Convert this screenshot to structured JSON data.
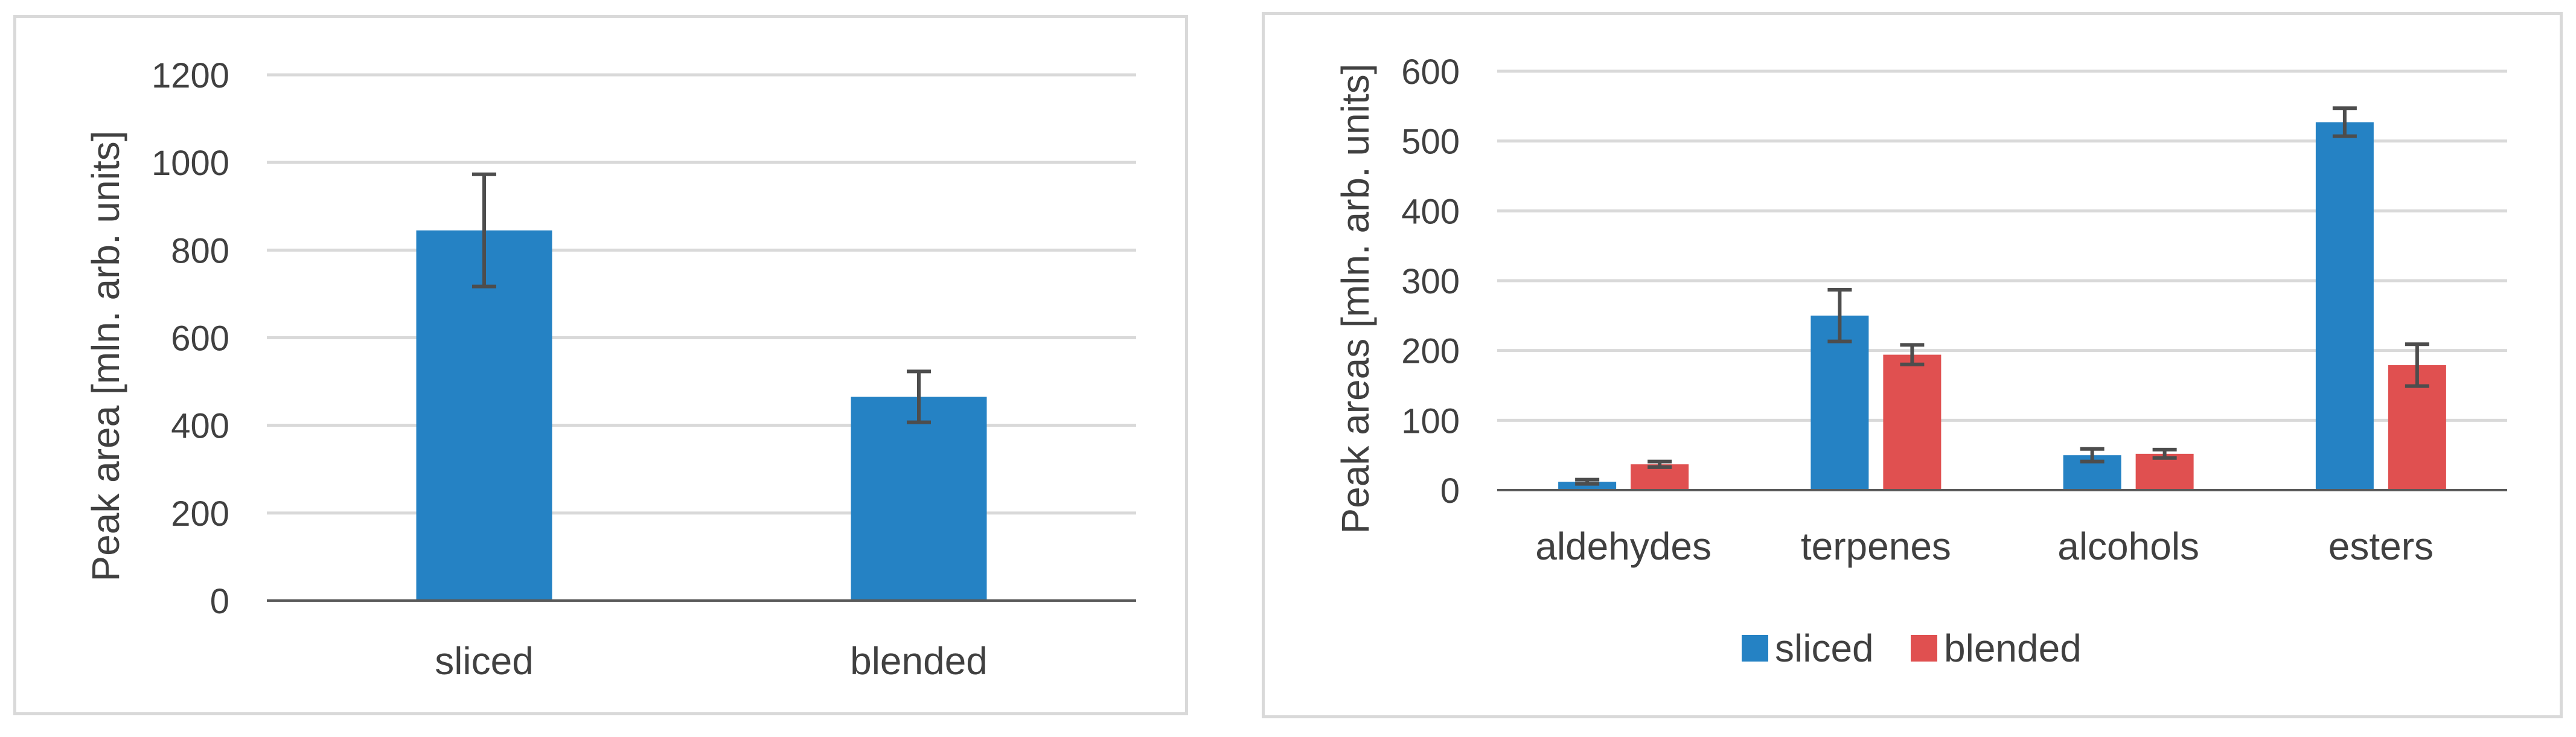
{
  "colors": {
    "sliced": "#2582c4",
    "blended": "#e05050",
    "grid": "#d9d9d9",
    "axis": "#595959",
    "text": "#404040",
    "errorbar": "#4d4d4d"
  },
  "chart_data": [
    {
      "type": "bar",
      "categories": [
        "sliced",
        "blended"
      ],
      "series": [
        {
          "values": [
            845,
            465
          ],
          "errors": [
            128,
            58
          ],
          "color": "#2582c4"
        }
      ],
      "title": "",
      "xlabel": "",
      "ylabel": "Peak area [mln. arb. units]",
      "ylim": [
        0,
        1200
      ],
      "yticks": [
        0,
        200,
        400,
        600,
        800,
        1000,
        1200
      ],
      "grid": true,
      "legend": "none"
    },
    {
      "type": "bar",
      "categories": [
        "aldehydes",
        "terpenes",
        "alcohols",
        "esters"
      ],
      "series": [
        {
          "name": "sliced",
          "values": [
            12,
            250,
            50,
            527
          ],
          "errors": [
            3,
            37,
            9,
            20
          ],
          "color": "#2582c4"
        },
        {
          "name": "blended",
          "values": [
            37,
            194,
            52,
            179
          ],
          "errors": [
            4,
            14,
            6,
            30
          ],
          "color": "#e05050"
        }
      ],
      "title": "",
      "xlabel": "",
      "ylabel": "Peak areas [mln. arb. units]",
      "ylim": [
        0,
        600
      ],
      "yticks": [
        0,
        100,
        200,
        300,
        400,
        500,
        600
      ],
      "grid": true,
      "legend": "bottom"
    }
  ]
}
